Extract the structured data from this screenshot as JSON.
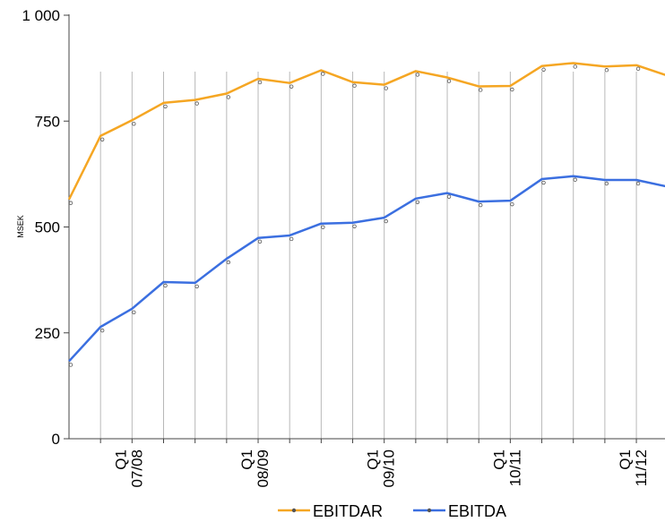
{
  "chart_data": {
    "type": "line",
    "title": "",
    "xlabel": "",
    "ylabel": "MSEK",
    "ylim": [
      0,
      1000
    ],
    "yticks": [
      {
        "value": 0,
        "label": "0"
      },
      {
        "value": 250,
        "label": "250"
      },
      {
        "value": 500,
        "label": "500"
      },
      {
        "value": 750,
        "label": "750"
      },
      {
        "value": 1000,
        "label": "1 000"
      }
    ],
    "x_count": 20,
    "x_labels": [
      {
        "index": 2,
        "line1": "Q1",
        "line2": "07/08"
      },
      {
        "index": 6,
        "line1": "Q1",
        "line2": "08/09"
      },
      {
        "index": 10,
        "line1": "Q1",
        "line2": "09/10"
      },
      {
        "index": 14,
        "line1": "Q1",
        "line2": "10/11"
      },
      {
        "index": 18,
        "line1": "Q1",
        "line2": "11/12"
      }
    ],
    "grid": "vertical",
    "legend": "bottom",
    "series": [
      {
        "name": "EBITDAR",
        "color": "#F5A623",
        "values": [
          565,
          715,
          752,
          793,
          800,
          815,
          850,
          840,
          870,
          842,
          836,
          868,
          853,
          832,
          833,
          880,
          887,
          879,
          882,
          857
        ]
      },
      {
        "name": "EBITDA",
        "color": "#3B6FE0",
        "values": [
          183,
          264,
          307,
          370,
          368,
          425,
          474,
          480,
          508,
          510,
          522,
          567,
          580,
          560,
          562,
          613,
          620,
          611,
          611,
          595
        ]
      }
    ]
  }
}
